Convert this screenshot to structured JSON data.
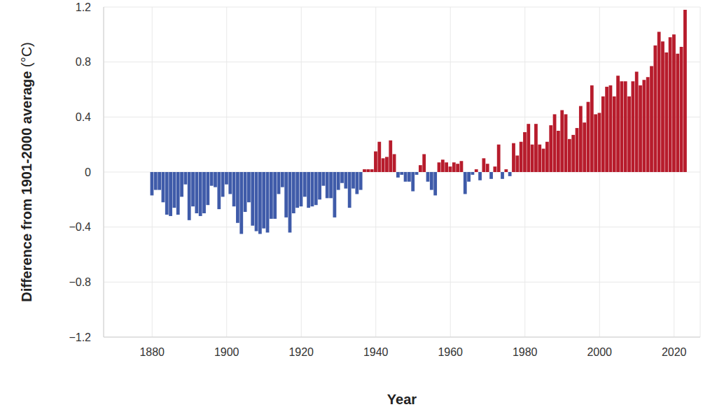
{
  "chart_data": {
    "type": "bar",
    "x_label": "Year",
    "y_label": "Difference from 1901-2000 average (°C)",
    "x": [
      1880,
      1881,
      1882,
      1883,
      1884,
      1885,
      1886,
      1887,
      1888,
      1889,
      1890,
      1891,
      1892,
      1893,
      1894,
      1895,
      1896,
      1897,
      1898,
      1899,
      1900,
      1901,
      1902,
      1903,
      1904,
      1905,
      1906,
      1907,
      1908,
      1909,
      1910,
      1911,
      1912,
      1913,
      1914,
      1915,
      1916,
      1917,
      1918,
      1919,
      1920,
      1921,
      1922,
      1923,
      1924,
      1925,
      1926,
      1927,
      1928,
      1929,
      1930,
      1931,
      1932,
      1933,
      1934,
      1935,
      1936,
      1937,
      1938,
      1939,
      1940,
      1941,
      1942,
      1943,
      1944,
      1945,
      1946,
      1947,
      1948,
      1949,
      1950,
      1951,
      1952,
      1953,
      1954,
      1955,
      1956,
      1957,
      1958,
      1959,
      1960,
      1961,
      1962,
      1963,
      1964,
      1965,
      1966,
      1967,
      1968,
      1969,
      1970,
      1971,
      1972,
      1973,
      1974,
      1975,
      1976,
      1977,
      1978,
      1979,
      1980,
      1981,
      1982,
      1983,
      1984,
      1985,
      1986,
      1987,
      1988,
      1989,
      1990,
      1991,
      1992,
      1993,
      1994,
      1995,
      1996,
      1997,
      1998,
      1999,
      2000,
      2001,
      2002,
      2003,
      2004,
      2005,
      2006,
      2007,
      2008,
      2009,
      2010,
      2011,
      2012,
      2013,
      2014,
      2015,
      2016,
      2017,
      2018,
      2019,
      2020,
      2021,
      2022,
      2023
    ],
    "values": [
      -0.17,
      -0.13,
      -0.13,
      -0.22,
      -0.31,
      -0.32,
      -0.26,
      -0.31,
      -0.18,
      -0.09,
      -0.35,
      -0.25,
      -0.3,
      -0.32,
      -0.3,
      -0.24,
      -0.1,
      -0.11,
      -0.27,
      -0.18,
      -0.09,
      -0.16,
      -0.25,
      -0.37,
      -0.45,
      -0.29,
      -0.22,
      -0.39,
      -0.43,
      -0.45,
      -0.41,
      -0.44,
      -0.34,
      -0.34,
      -0.16,
      -0.11,
      -0.33,
      -0.44,
      -0.3,
      -0.26,
      -0.25,
      -0.18,
      -0.26,
      -0.25,
      -0.24,
      -0.2,
      -0.1,
      -0.19,
      -0.19,
      -0.33,
      -0.13,
      -0.08,
      -0.12,
      -0.26,
      -0.12,
      -0.16,
      -0.13,
      0.02,
      0.02,
      0.02,
      0.15,
      0.22,
      0.1,
      0.11,
      0.23,
      0.13,
      -0.04,
      -0.02,
      -0.07,
      -0.07,
      -0.14,
      -0.02,
      0.05,
      0.13,
      -0.07,
      -0.13,
      -0.17,
      0.07,
      0.09,
      0.07,
      0.04,
      0.07,
      0.06,
      0.08,
      -0.16,
      -0.07,
      -0.02,
      0.02,
      -0.06,
      0.1,
      0.06,
      -0.05,
      0.04,
      0.2,
      -0.05,
      0.02,
      -0.03,
      0.21,
      0.12,
      0.22,
      0.29,
      0.35,
      0.2,
      0.35,
      0.2,
      0.17,
      0.22,
      0.34,
      0.42,
      0.3,
      0.45,
      0.42,
      0.24,
      0.27,
      0.32,
      0.48,
      0.36,
      0.51,
      0.63,
      0.42,
      0.43,
      0.55,
      0.62,
      0.63,
      0.55,
      0.7,
      0.66,
      0.66,
      0.55,
      0.66,
      0.73,
      0.63,
      0.67,
      0.69,
      0.77,
      0.92,
      1.02,
      0.95,
      0.87,
      0.98,
      1.0,
      0.86,
      0.91,
      1.18
    ],
    "colors": [
      "#3f5ba9",
      "#3f5ba9",
      "#3f5ba9",
      "#3f5ba9",
      "#3f5ba9",
      "#3f5ba9",
      "#3f5ba9",
      "#3f5ba9",
      "#3f5ba9",
      "#3f5ba9",
      "#3f5ba9",
      "#3f5ba9",
      "#3f5ba9",
      "#3f5ba9",
      "#3f5ba9",
      "#3f5ba9",
      "#3f5ba9",
      "#3f5ba9",
      "#3f5ba9",
      "#3f5ba9",
      "#3f5ba9",
      "#3f5ba9",
      "#3f5ba9",
      "#3f5ba9",
      "#3f5ba9",
      "#3f5ba9",
      "#3f5ba9",
      "#3f5ba9",
      "#3f5ba9",
      "#3f5ba9",
      "#3f5ba9",
      "#3f5ba9",
      "#3f5ba9",
      "#3f5ba9",
      "#3f5ba9",
      "#3f5ba9",
      "#3f5ba9",
      "#3f5ba9",
      "#3f5ba9",
      "#3f5ba9",
      "#3f5ba9",
      "#3f5ba9",
      "#3f5ba9",
      "#3f5ba9",
      "#3f5ba9",
      "#3f5ba9",
      "#3f5ba9",
      "#3f5ba9",
      "#3f5ba9",
      "#3f5ba9",
      "#3f5ba9",
      "#3f5ba9",
      "#3f5ba9",
      "#3f5ba9",
      "#3f5ba9",
      "#3f5ba9",
      "#3f5ba9",
      "#b71c2c",
      "#b71c2c",
      "#b71c2c",
      "#b71c2c",
      "#b71c2c",
      "#b71c2c",
      "#b71c2c",
      "#b71c2c",
      "#b71c2c",
      "#3f5ba9",
      "#3f5ba9",
      "#3f5ba9",
      "#3f5ba9",
      "#3f5ba9",
      "#3f5ba9",
      "#b71c2c",
      "#b71c2c",
      "#3f5ba9",
      "#3f5ba9",
      "#3f5ba9",
      "#b71c2c",
      "#b71c2c",
      "#b71c2c",
      "#b71c2c",
      "#b71c2c",
      "#b71c2c",
      "#b71c2c",
      "#3f5ba9",
      "#3f5ba9",
      "#3f5ba9",
      "#b71c2c",
      "#3f5ba9",
      "#b71c2c",
      "#b71c2c",
      "#3f5ba9",
      "#b71c2c",
      "#b71c2c",
      "#3f5ba9",
      "#b71c2c",
      "#3f5ba9",
      "#b71c2c",
      "#b71c2c",
      "#b71c2c",
      "#b71c2c",
      "#b71c2c",
      "#b71c2c",
      "#b71c2c",
      "#b71c2c",
      "#b71c2c",
      "#b71c2c",
      "#b71c2c",
      "#b71c2c",
      "#b71c2c",
      "#b71c2c",
      "#b71c2c",
      "#b71c2c",
      "#b71c2c",
      "#b71c2c",
      "#b71c2c",
      "#b71c2c",
      "#b71c2c",
      "#b71c2c",
      "#b71c2c",
      "#b71c2c",
      "#b71c2c",
      "#b71c2c",
      "#b71c2c",
      "#b71c2c",
      "#b71c2c",
      "#b71c2c",
      "#b71c2c",
      "#b71c2c",
      "#b71c2c",
      "#b71c2c",
      "#b71c2c",
      "#b71c2c",
      "#b71c2c",
      "#b71c2c",
      "#b71c2c",
      "#b71c2c",
      "#b71c2c",
      "#b71c2c",
      "#b71c2c",
      "#b71c2c",
      "#b71c2c",
      "#b71c2c",
      "#b71c2c"
    ],
    "xlim": [
      1867,
      2027
    ],
    "xticks": [
      1880,
      1900,
      1920,
      1940,
      1960,
      1980,
      2000,
      2020
    ],
    "ylim": [
      -1.2,
      1.2
    ],
    "yticks": [
      {
        "value": -1.2,
        "label": "−1.2"
      },
      {
        "value": -0.8,
        "label": "−0.8"
      },
      {
        "value": -0.4,
        "label": "−0.4"
      },
      0,
      0.4,
      0.8,
      1.2
    ],
    "grid": true
  }
}
